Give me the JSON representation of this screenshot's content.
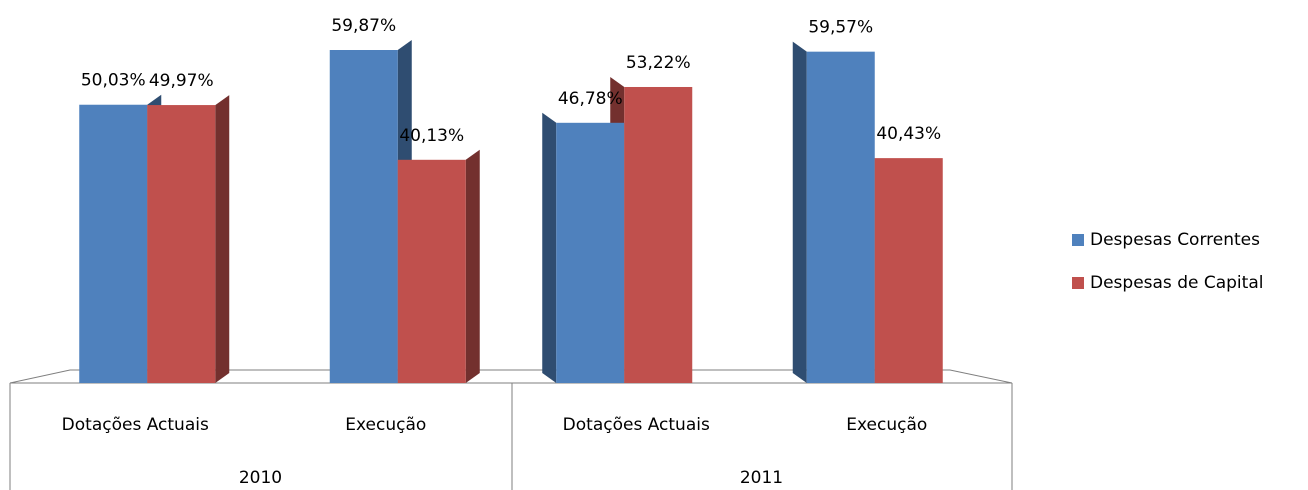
{
  "chart_data": {
    "type": "bar3d",
    "categories": [
      "Dotações Actuais",
      "Execução",
      "Dotações Actuais",
      "Execução"
    ],
    "groups": [
      "2010",
      "2011"
    ],
    "series": [
      {
        "name": "Despesas Correntes",
        "color": "#4f81bd",
        "values": [
          50.03,
          59.87,
          46.78,
          59.57
        ],
        "value_labels": [
          "50,03%",
          "59,87%",
          "46,78%",
          "59,57%"
        ]
      },
      {
        "name": "Despesas de Capital",
        "color": "#c0504d",
        "values": [
          49.97,
          40.13,
          53.22,
          40.43
        ],
        "value_labels": [
          "49,97%",
          "40,13%",
          "53,22%",
          "40,43%"
        ]
      }
    ],
    "legend": "right"
  }
}
